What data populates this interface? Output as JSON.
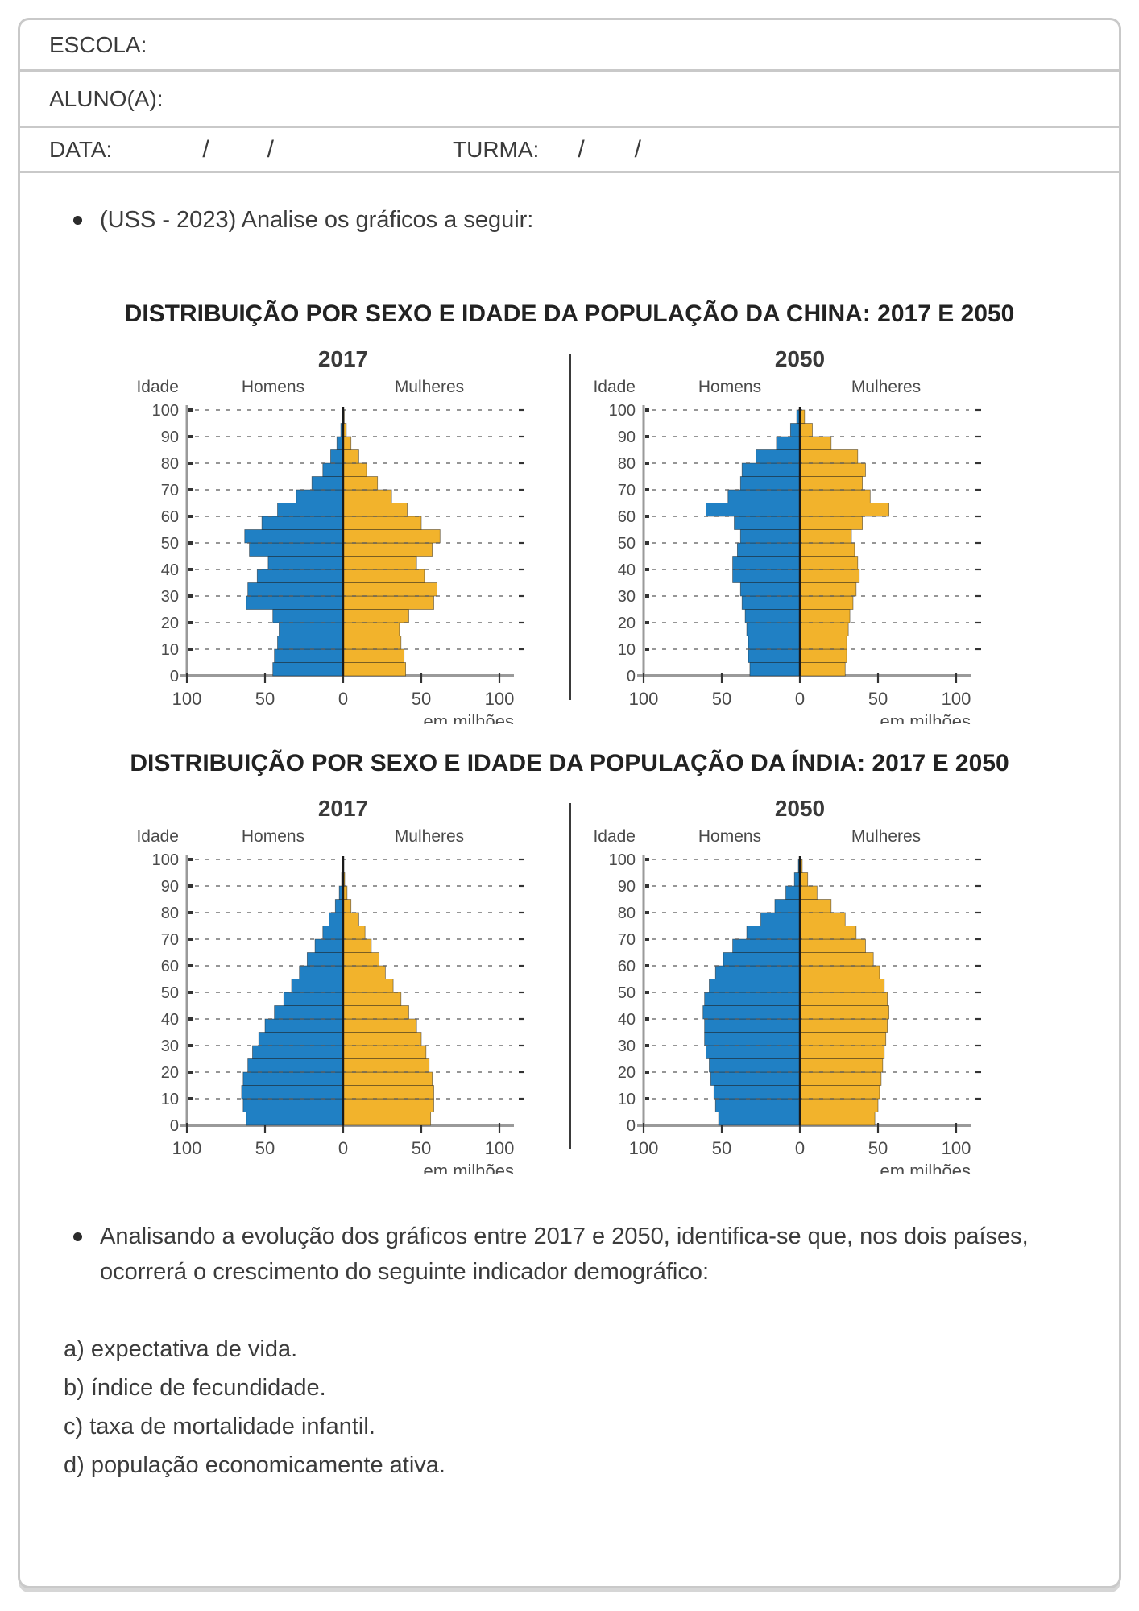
{
  "header": {
    "school_label": "ESCOLA:",
    "student_label": "ALUNO(A):",
    "date_label": "DATA:",
    "class_label": "TURMA:",
    "slash": "/"
  },
  "question": {
    "intro": "(USS - 2023) Analise os gráficos a seguir:",
    "china_title": "DISTRIBUIÇÃO POR SEXO E IDADE DA POPULAÇÃO DA CHINA: 2017 E 2050",
    "india_title": "DISTRIBUIÇÃO POR SEXO E IDADE DA POPULAÇÃO DA ÍNDIA: 2017 E 2050",
    "stem": "Analisando a evolução dos gráficos entre 2017 e 2050, identifica-se que, nos dois países, ocorrerá o crescimento do seguinte indicador demográfico:"
  },
  "options": [
    "a) expectativa de vida.",
    "b) índice de fecundidade.",
    "c) taxa de mortalidade infantil.",
    "d) população economicamente ativa."
  ],
  "chart_style": {
    "male_color": "#2080c4",
    "female_color": "#f2b32c",
    "axis_color": "#9a9a9a",
    "tick_color": "#333333",
    "label_color": "#4a4a4a",
    "grid_color": "#5f5f5f",
    "spine_color": "#1a1a1a"
  },
  "chart_data": [
    {
      "type": "bar",
      "subtype": "population-pyramid",
      "country": "China",
      "title": "2017",
      "ylabel": "Idade",
      "xlabel": "em milhões",
      "legend_left": "Homens",
      "legend_right": "Mulheres",
      "x_ticks": [
        "100",
        "50",
        "0",
        "50",
        "100"
      ],
      "y_ticks": [
        0,
        10,
        20,
        30,
        40,
        50,
        60,
        70,
        80,
        90,
        100
      ],
      "xlim_millions": 100,
      "age_groups": [
        "0-4",
        "5-9",
        "10-14",
        "15-19",
        "20-24",
        "25-29",
        "30-34",
        "35-39",
        "40-44",
        "45-49",
        "50-54",
        "55-59",
        "60-64",
        "65-69",
        "70-74",
        "75-79",
        "80-84",
        "85-89",
        "90-94",
        "95-99"
      ],
      "male_millions": [
        45,
        44,
        42,
        41,
        45,
        62,
        61,
        55,
        48,
        60,
        63,
        52,
        42,
        30,
        20,
        13,
        8,
        4,
        1.5,
        0.5
      ],
      "female_millions": [
        40,
        39,
        37,
        36,
        42,
        58,
        60,
        52,
        47,
        57,
        62,
        50,
        41,
        31,
        22,
        15,
        10,
        5,
        2,
        0.7
      ]
    },
    {
      "type": "bar",
      "subtype": "population-pyramid",
      "country": "China",
      "title": "2050",
      "ylabel": "Idade",
      "xlabel": "em milhões",
      "legend_left": "Homens",
      "legend_right": "Mulheres",
      "x_ticks": [
        "100",
        "50",
        "0",
        "50",
        "100"
      ],
      "y_ticks": [
        0,
        10,
        20,
        30,
        40,
        50,
        60,
        70,
        80,
        90,
        100
      ],
      "xlim_millions": 100,
      "age_groups": [
        "0-4",
        "5-9",
        "10-14",
        "15-19",
        "20-24",
        "25-29",
        "30-34",
        "35-39",
        "40-44",
        "45-49",
        "50-54",
        "55-59",
        "60-64",
        "65-69",
        "70-74",
        "75-79",
        "80-84",
        "85-89",
        "90-94",
        "95-99"
      ],
      "male_millions": [
        32,
        33,
        33,
        34,
        35,
        37,
        38,
        43,
        43,
        40,
        38,
        42,
        60,
        46,
        38,
        37,
        28,
        15,
        6,
        2
      ],
      "female_millions": [
        29,
        30,
        30,
        31,
        32,
        34,
        36,
        38,
        37,
        35,
        33,
        40,
        57,
        45,
        40,
        42,
        37,
        20,
        8,
        3
      ]
    },
    {
      "type": "bar",
      "subtype": "population-pyramid",
      "country": "Índia",
      "title": "2017",
      "ylabel": "Idade",
      "xlabel": "em milhões",
      "legend_left": "Homens",
      "legend_right": "Mulheres",
      "x_ticks": [
        "100",
        "50",
        "0",
        "50",
        "100"
      ],
      "y_ticks": [
        0,
        10,
        20,
        30,
        40,
        50,
        60,
        70,
        80,
        90,
        100
      ],
      "xlim_millions": 100,
      "age_groups": [
        "0-4",
        "5-9",
        "10-14",
        "15-19",
        "20-24",
        "25-29",
        "30-34",
        "35-39",
        "40-44",
        "45-49",
        "50-54",
        "55-59",
        "60-64",
        "65-69",
        "70-74",
        "75-79",
        "80-84",
        "85-89",
        "90-94",
        "95-99"
      ],
      "male_millions": [
        62,
        64,
        65,
        64,
        61,
        58,
        54,
        50,
        44,
        38,
        33,
        28,
        23,
        18,
        13,
        9,
        5,
        2.5,
        1,
        0.4
      ],
      "female_millions": [
        56,
        58,
        58,
        57,
        55,
        53,
        50,
        47,
        42,
        37,
        32,
        27,
        23,
        18,
        14,
        10,
        5,
        2.5,
        1,
        0.4
      ]
    },
    {
      "type": "bar",
      "subtype": "population-pyramid",
      "country": "Índia",
      "title": "2050",
      "ylabel": "Idade",
      "xlabel": "em milhões",
      "legend_left": "Homens",
      "legend_right": "Mulheres",
      "x_ticks": [
        "100",
        "50",
        "0",
        "50",
        "100"
      ],
      "y_ticks": [
        0,
        10,
        20,
        30,
        40,
        50,
        60,
        70,
        80,
        90,
        100
      ],
      "xlim_millions": 100,
      "age_groups": [
        "0-4",
        "5-9",
        "10-14",
        "15-19",
        "20-24",
        "25-29",
        "30-34",
        "35-39",
        "40-44",
        "45-49",
        "50-54",
        "55-59",
        "60-64",
        "65-69",
        "70-74",
        "75-79",
        "80-84",
        "85-89",
        "90-94",
        "95-99"
      ],
      "male_millions": [
        52,
        54,
        55,
        57,
        58,
        60,
        61,
        61,
        62,
        61,
        58,
        54,
        49,
        43,
        34,
        25,
        16,
        9,
        3.5,
        1
      ],
      "female_millions": [
        48,
        50,
        51,
        52,
        53,
        54,
        55,
        56,
        57,
        56,
        54,
        51,
        47,
        42,
        36,
        29,
        20,
        11,
        5,
        1.5
      ]
    }
  ]
}
